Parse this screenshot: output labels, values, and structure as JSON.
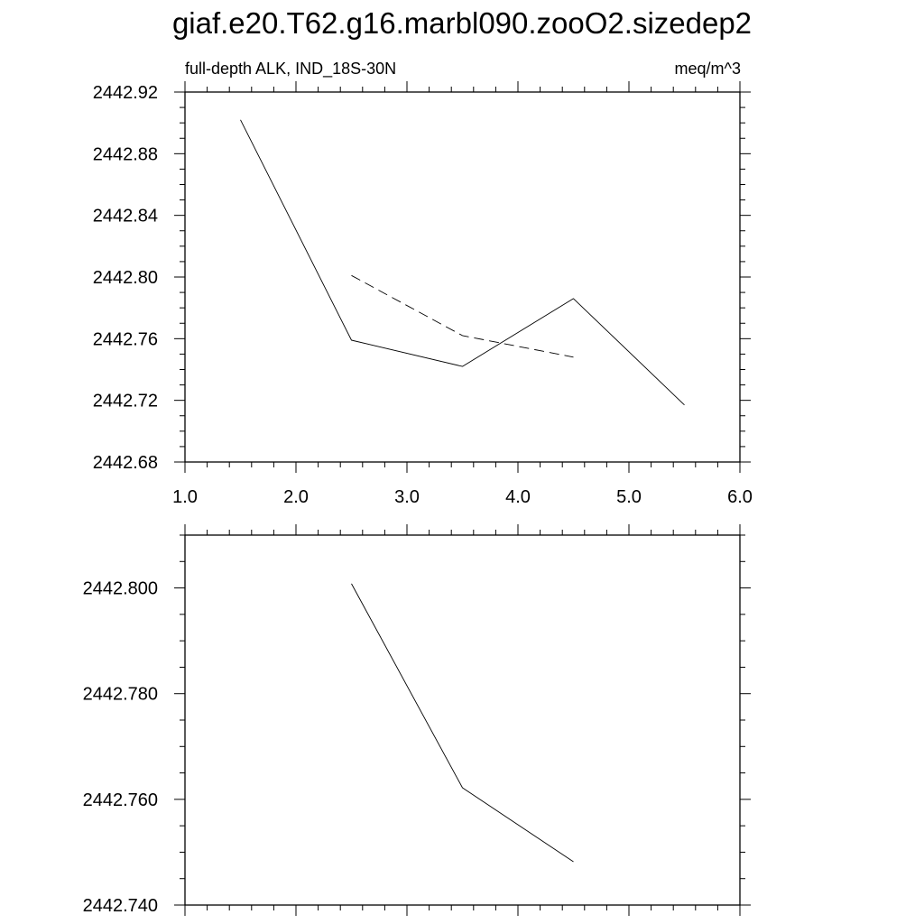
{
  "title": "giaf.e20.T62.g16.marbl090.zooO2.sizedep2",
  "subtitle_left": "full-depth ALK, IND_18S-30N",
  "subtitle_right": "meq/m^3",
  "chart_data": [
    {
      "type": "line",
      "grid": false,
      "xlim": [
        1.0,
        6.0
      ],
      "ylim": [
        2442.68,
        2442.92
      ],
      "x_ticks": [
        "1.0",
        "2.0",
        "3.0",
        "4.0",
        "5.0",
        "6.0"
      ],
      "y_ticks": [
        "2442.68",
        "2442.72",
        "2442.76",
        "2442.80",
        "2442.84",
        "2442.88",
        "2442.92"
      ],
      "series": [
        {
          "style": "solid",
          "x": [
            1.5,
            2.5,
            3.5,
            4.5,
            5.5
          ],
          "y": [
            2442.902,
            2442.759,
            2442.742,
            2442.786,
            2442.717
          ]
        },
        {
          "style": "dashed",
          "x": [
            2.5,
            3.5,
            4.5
          ],
          "y": [
            2442.801,
            2442.762,
            2442.748
          ]
        }
      ]
    },
    {
      "type": "line",
      "grid": false,
      "xlim": [
        1.0,
        6.0
      ],
      "ylim": [
        2442.74,
        2442.81
      ],
      "x_ticks": [],
      "y_ticks": [
        "2442.740",
        "2442.760",
        "2442.780",
        "2442.800"
      ],
      "series": [
        {
          "style": "solid",
          "x": [
            2.5,
            3.5,
            4.5
          ],
          "y": [
            2442.8008,
            2442.7622,
            2442.7482
          ]
        }
      ]
    }
  ]
}
